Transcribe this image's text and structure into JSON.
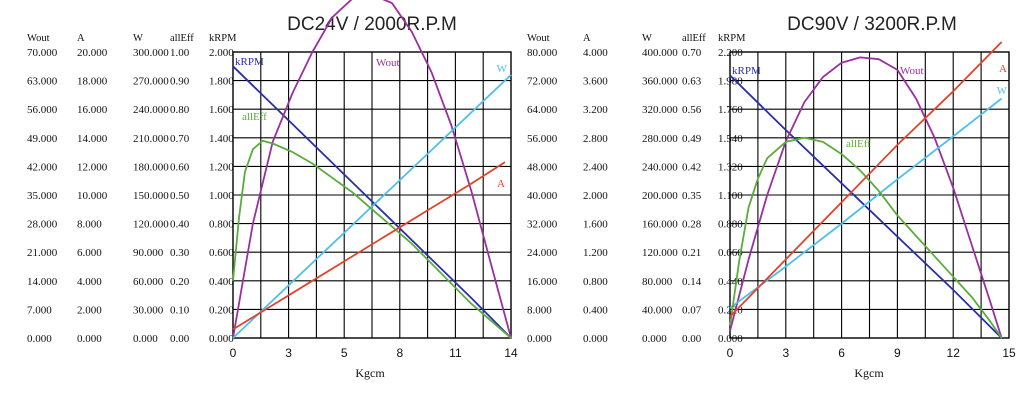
{
  "chart_data": [
    {
      "type": "line",
      "title": "DC24V / 2000R.P.M",
      "xlabel": "Kgcm",
      "x_ticks": [
        "0",
        "3",
        "5",
        "8",
        "11",
        "14"
      ],
      "xlim": [
        0,
        14
      ],
      "grid": true,
      "axes": [
        {
          "header": "Wout",
          "ticks": [
            "0.000",
            "7.000",
            "14.000",
            "21.000",
            "28.000",
            "35.000",
            "42.000",
            "49.000",
            "56.000",
            "63.000",
            "70.000"
          ],
          "range": [
            0,
            70
          ]
        },
        {
          "header": "A",
          "ticks": [
            "0.000",
            "2.000",
            "4.000",
            "6.000",
            "8.000",
            "10.000",
            "12.000",
            "14.000",
            "16.000",
            "18.000",
            "20.000"
          ],
          "range": [
            0,
            20
          ]
        },
        {
          "header": "W",
          "ticks": [
            "0.000",
            "30.000",
            "60.000",
            "90.000",
            "120.000",
            "150.000",
            "180.000",
            "210.000",
            "240.000",
            "270.000",
            "300.000"
          ],
          "range": [
            0,
            300
          ]
        },
        {
          "header": "allEff",
          "ticks": [
            "0.00",
            "0.10",
            "0.20",
            "0.30",
            "0.40",
            "0.50",
            "0.60",
            "0.70",
            "0.80",
            "0.90",
            "1.00"
          ],
          "range": [
            0,
            1
          ]
        },
        {
          "header": "kRPM",
          "ticks": [
            "0.000",
            "0.200",
            "0.400",
            "0.600",
            "0.800",
            "1.000",
            "1.200",
            "1.400",
            "1.600",
            "1.800",
            "2.000"
          ],
          "range": [
            0,
            2
          ]
        }
      ],
      "series": [
        {
          "name": "kRPM",
          "color": "#2b2fa6",
          "points": [
            [
              0,
              1.9
            ],
            [
              2,
              1.63
            ],
            [
              4,
              1.36
            ],
            [
              6,
              1.09
            ],
            [
              8,
              0.82
            ],
            [
              10,
              0.55
            ],
            [
              12,
              0.28
            ],
            [
              14,
              0.0
            ]
          ]
        },
        {
          "name": "Wout",
          "color": "#9a2fa0",
          "points": [
            [
              0,
              0
            ],
            [
              1,
              28
            ],
            [
              2,
              48
            ],
            [
              3,
              60
            ],
            [
              4,
              70
            ],
            [
              5,
              78.5
            ],
            [
              6,
              83
            ],
            [
              7,
              84
            ],
            [
              8,
              82
            ],
            [
              9,
              75
            ],
            [
              10,
              65
            ],
            [
              11,
              52
            ],
            [
              12,
              36
            ],
            [
              13,
              18
            ],
            [
              14,
              0
            ]
          ]
        },
        {
          "name": "W",
          "color": "#4ec0ea",
          "points": [
            [
              0,
              0
            ],
            [
              14,
              276
            ]
          ]
        },
        {
          "name": "allEff",
          "color": "#5aac3c",
          "points": [
            [
              0,
              0.2
            ],
            [
              0.3,
              0.42
            ],
            [
              0.6,
              0.58
            ],
            [
              1,
              0.66
            ],
            [
              1.5,
              0.69
            ],
            [
              2,
              0.68
            ],
            [
              3,
              0.65
            ],
            [
              4,
              0.61
            ],
            [
              5,
              0.56
            ],
            [
              6,
              0.51
            ],
            [
              7,
              0.45
            ],
            [
              8,
              0.39
            ],
            [
              9,
              0.33
            ],
            [
              10,
              0.26
            ],
            [
              11,
              0.19
            ],
            [
              12,
              0.12
            ],
            [
              13,
              0.06
            ],
            [
              14,
              0.0
            ]
          ]
        },
        {
          "name": "A",
          "color": "#e0452b",
          "points": [
            [
              0,
              0.6
            ],
            [
              2,
              2.3
            ],
            [
              4,
              4.0
            ],
            [
              6,
              5.7
            ],
            [
              8,
              7.4
            ],
            [
              10,
              9.1
            ],
            [
              12,
              10.8
            ],
            [
              13.7,
              12.3
            ]
          ]
        }
      ]
    },
    {
      "type": "line",
      "title": "DC90V / 3200R.P.M",
      "xlabel": "Kgcm",
      "x_ticks": [
        "0",
        "3",
        "6",
        "9",
        "12",
        "15"
      ],
      "xlim": [
        0,
        15
      ],
      "grid": true,
      "axes": [
        {
          "header": "Wout",
          "ticks": [
            "0.000",
            "8.000",
            "16.000",
            "24.000",
            "32.000",
            "40.000",
            "48.000",
            "56.000",
            "64.000",
            "72.000",
            "80.000"
          ],
          "range": [
            0,
            80
          ]
        },
        {
          "header": "A",
          "ticks": [
            "0.000",
            "0.400",
            "0.800",
            "1.200",
            "1.600",
            "2.000",
            "2.400",
            "2.800",
            "3.200",
            "3.600",
            "4.000"
          ],
          "range": [
            0,
            4
          ]
        },
        {
          "header": "W",
          "ticks": [
            "0.000",
            "40.000",
            "80.000",
            "120.000",
            "160.000",
            "200.000",
            "240.000",
            "280.000",
            "320.000",
            "360.000",
            "400.000"
          ],
          "range": [
            0,
            400
          ]
        },
        {
          "header": "allEff",
          "ticks": [
            "0.00",
            "0.07",
            "0.14",
            "0.21",
            "0.28",
            "0.35",
            "0.42",
            "0.49",
            "0.56",
            "0.63",
            "0.70"
          ],
          "range": [
            0,
            0.7
          ]
        },
        {
          "header": "kRPM",
          "ticks": [
            "0.000",
            "0.220",
            "0.440",
            "0.660",
            "0.880",
            "1.100",
            "1.320",
            "1.540",
            "1.760",
            "1.980",
            "2.200"
          ],
          "range": [
            0,
            2.2
          ]
        }
      ],
      "series": [
        {
          "name": "kRPM",
          "color": "#2b2fa6",
          "points": [
            [
              0,
              2.02
            ],
            [
              3,
              1.6
            ],
            [
              6,
              1.19
            ],
            [
              9,
              0.78
            ],
            [
              12,
              0.37
            ],
            [
              14.6,
              0.0
            ]
          ]
        },
        {
          "name": "Wout",
          "color": "#9a2fa0",
          "points": [
            [
              0,
              2
            ],
            [
              1,
              22
            ],
            [
              2,
              40
            ],
            [
              3,
              55
            ],
            [
              4,
              66
            ],
            [
              5,
              73
            ],
            [
              6,
              77
            ],
            [
              7,
              78.5
            ],
            [
              8,
              78
            ],
            [
              9,
              75
            ],
            [
              10,
              67
            ],
            [
              11,
              56
            ],
            [
              12,
              42
            ],
            [
              13,
              26
            ],
            [
              14,
              10
            ],
            [
              14.6,
              0
            ]
          ]
        },
        {
          "name": "W",
          "color": "#4ec0ea",
          "points": [
            [
              0,
              42
            ],
            [
              3,
              100
            ],
            [
              6,
              160
            ],
            [
              9,
              222
            ],
            [
              12,
              282
            ],
            [
              14.6,
              335
            ]
          ]
        },
        {
          "name": "allEff",
          "color": "#5aac3c",
          "points": [
            [
              0,
              0.03
            ],
            [
              0.5,
              0.19
            ],
            [
              1,
              0.32
            ],
            [
              1.5,
              0.39
            ],
            [
              2,
              0.44
            ],
            [
              3,
              0.48
            ],
            [
              4,
              0.49
            ],
            [
              5,
              0.48
            ],
            [
              6,
              0.45
            ],
            [
              7,
              0.41
            ],
            [
              8,
              0.36
            ],
            [
              9,
              0.3
            ],
            [
              10,
              0.25
            ],
            [
              11,
              0.2
            ],
            [
              12,
              0.15
            ],
            [
              13,
              0.1
            ],
            [
              14,
              0.04
            ],
            [
              14.6,
              0.0
            ]
          ]
        },
        {
          "name": "A",
          "color": "#e0452b",
          "points": [
            [
              0,
              0.3
            ],
            [
              3,
              1.1
            ],
            [
              6,
              1.9
            ],
            [
              9,
              2.7
            ],
            [
              12,
              3.45
            ],
            [
              14.6,
              4.14
            ]
          ]
        }
      ]
    }
  ]
}
